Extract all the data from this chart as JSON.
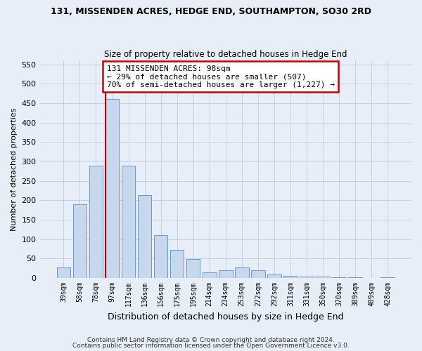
{
  "title": "131, MISSENDEN ACRES, HEDGE END, SOUTHAMPTON, SO30 2RD",
  "subtitle": "Size of property relative to detached houses in Hedge End",
  "xlabel": "Distribution of detached houses by size in Hedge End",
  "ylabel": "Number of detached properties",
  "bar_labels": [
    "39sqm",
    "58sqm",
    "78sqm",
    "97sqm",
    "117sqm",
    "136sqm",
    "156sqm",
    "175sqm",
    "195sqm",
    "214sqm",
    "234sqm",
    "253sqm",
    "272sqm",
    "292sqm",
    "311sqm",
    "331sqm",
    "350sqm",
    "370sqm",
    "389sqm",
    "409sqm",
    "428sqm"
  ],
  "bar_values": [
    28,
    190,
    290,
    460,
    290,
    213,
    110,
    72,
    48,
    15,
    20,
    28,
    20,
    10,
    5,
    3,
    3,
    2,
    2,
    1,
    2
  ],
  "bar_color": "#c5d8ed",
  "bar_edge_color": "#5b8cc8",
  "vline_bin_index": 3,
  "annotation_title": "131 MISSENDEN ACRES: 98sqm",
  "annotation_line1": "← 29% of detached houses are smaller (507)",
  "annotation_line2": "70% of semi-detached houses are larger (1,227) →",
  "annotation_box_color": "#ffffff",
  "annotation_box_edge": "#cc0000",
  "vline_color": "#cc0000",
  "ylim": [
    0,
    560
  ],
  "yticks": [
    0,
    50,
    100,
    150,
    200,
    250,
    300,
    350,
    400,
    450,
    500,
    550
  ],
  "grid_color": "#c8d0e8",
  "background_color": "#e8eef8",
  "footer1": "Contains HM Land Registry data © Crown copyright and database right 2024.",
  "footer2": "Contains public sector information licensed under the Open Government Licence v3.0."
}
